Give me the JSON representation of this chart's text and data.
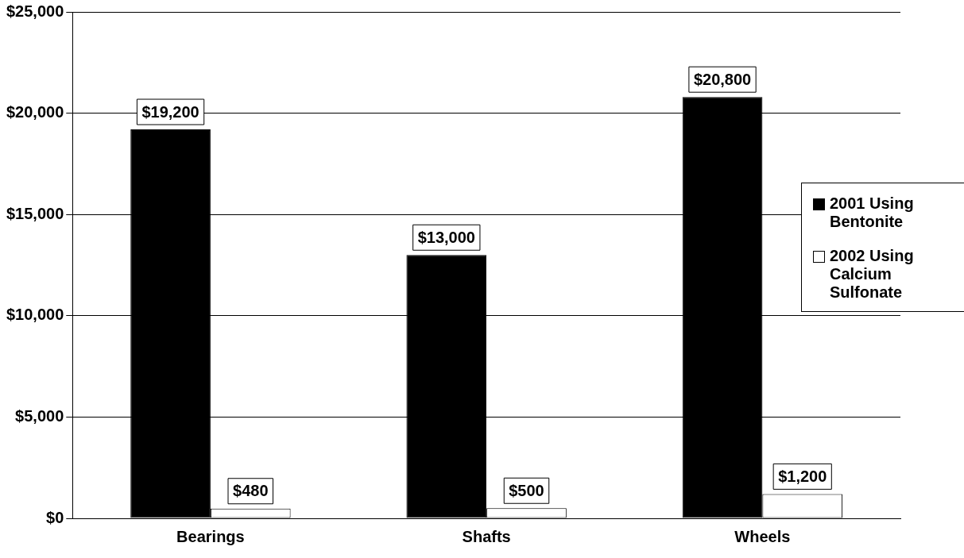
{
  "chart_data": {
    "type": "bar",
    "categories": [
      "Bearings",
      "Shafts",
      "Wheels"
    ],
    "series": [
      {
        "name": "2001 Using Bentonite",
        "color": "#000000",
        "values": [
          19200,
          13000,
          20800
        ],
        "value_labels": [
          "$19,200",
          "$13,000",
          "$20,800"
        ]
      },
      {
        "name": "2002 Using Calcium Sulfonate",
        "color": "#ffffff",
        "values": [
          480,
          500,
          1200
        ],
        "value_labels": [
          "$480",
          "$500",
          "$1,200"
        ]
      }
    ],
    "ylim": [
      0,
      25000
    ],
    "yticks": [
      {
        "value": 0,
        "label": "$0"
      },
      {
        "value": 5000,
        "label": "$5,000"
      },
      {
        "value": 10000,
        "label": "$10,000"
      },
      {
        "value": 15000,
        "label": "$15,000"
      },
      {
        "value": 20000,
        "label": "$20,000"
      },
      {
        "value": 25000,
        "label": "$25,000"
      }
    ],
    "grid": "y",
    "legend": "right"
  }
}
